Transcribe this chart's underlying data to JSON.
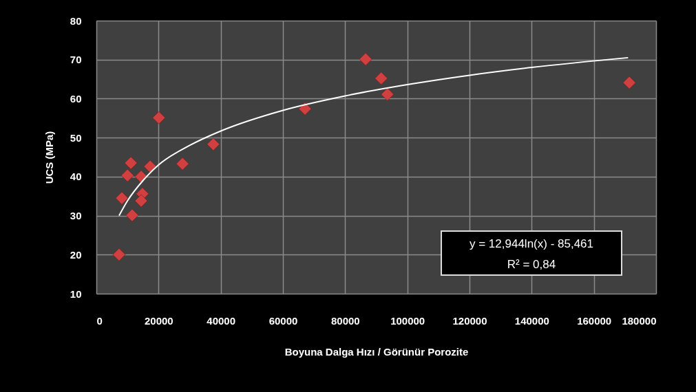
{
  "chart_data": {
    "type": "scatter",
    "xlabel": "Boyuna Dalga Hızı / Görünür Porozite",
    "ylabel": "UCS (MPa)",
    "xlim": [
      0,
      180000
    ],
    "xticks": [
      0,
      20000,
      40000,
      60000,
      80000,
      100000,
      120000,
      140000,
      160000,
      180000
    ],
    "ylim": [
      10,
      80
    ],
    "yticks": [
      10,
      20,
      30,
      40,
      50,
      60,
      70,
      80
    ],
    "grid": true,
    "series": [
      {
        "color": "#d04040",
        "marker": "diamond",
        "x": [
          7300,
          11100,
          10000,
          17300,
          14400,
          8200,
          14800,
          14400,
          11500,
          27700,
          37600,
          20100,
          67100,
          86600,
          91600,
          93600,
          171400
        ],
        "values": [
          20,
          43.5,
          40.3,
          42.6,
          40,
          34.5,
          35.6,
          33.8,
          30.1,
          43.3,
          48.3,
          55.1,
          57.4,
          70.1,
          65.2,
          61.1,
          64.1
        ]
      },
      {
        "type": "line",
        "color": "#ffffff",
        "x": [
          7300,
          10000,
          15000,
          20000,
          30000,
          40000,
          60000,
          80000,
          100000,
          120000,
          140000,
          171000
        ],
        "values": [
          30,
          33.8,
          39,
          43,
          48,
          51.7,
          57,
          60.7,
          63.6,
          66,
          68,
          70.5
        ]
      }
    ],
    "annotations": [
      "y = 12,944ln(x) - 85,461",
      "R² = 0,84"
    ]
  }
}
